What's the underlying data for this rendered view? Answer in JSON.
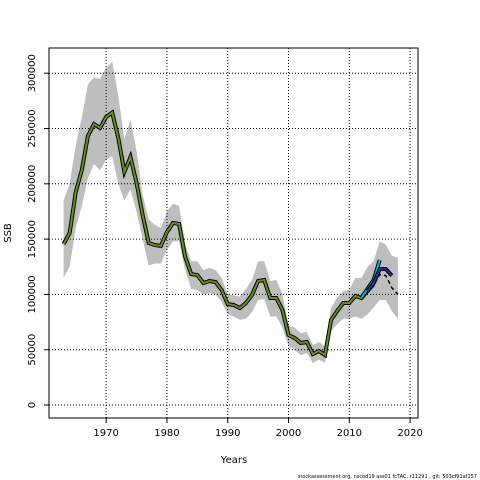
{
  "chart_data": {
    "type": "line",
    "xlabel": "Years",
    "ylabel": "SSB",
    "footer": "stockassessment.org, nscod19 ass01 fcTAC, r11291 , git: 503cf91af157",
    "xlim": [
      1960.6,
      2021.3
    ],
    "xticks": [
      1970,
      1980,
      1990,
      2000,
      2010,
      2020
    ],
    "ylim": [
      -11750,
      322800
    ],
    "yticks": [
      0,
      50000,
      100000,
      150000,
      200000,
      250000,
      300000
    ],
    "grid": true,
    "band_color": "#bebebe",
    "band": {
      "x": [
        1963,
        1964,
        1965,
        1966,
        1967,
        1968,
        1969,
        1970,
        1971,
        1972,
        1973,
        1974,
        1975,
        1976,
        1977,
        1978,
        1979,
        1980,
        1981,
        1982,
        1983,
        1984,
        1985,
        1986,
        1987,
        1988,
        1989,
        1990,
        1991,
        1992,
        1993,
        1994,
        1995,
        1996,
        1997,
        1998,
        1999,
        2000,
        2001,
        2002,
        2003,
        2004,
        2005,
        2006,
        2007,
        2008,
        2009,
        2010,
        2011,
        2012,
        2013,
        2014,
        2015,
        2016,
        2017,
        2018
      ],
      "upper": [
        185000,
        200000,
        235000,
        260000,
        290000,
        296000,
        295000,
        305000,
        310000,
        280000,
        240000,
        258000,
        230000,
        190000,
        168000,
        163000,
        160000,
        175000,
        182000,
        180000,
        145000,
        130000,
        130000,
        122000,
        124000,
        122000,
        115000,
        100000,
        99000,
        98000,
        105000,
        113000,
        130000,
        130000,
        112000,
        113000,
        100000,
        72000,
        70000,
        65000,
        66000,
        54000,
        57000,
        53000,
        88000,
        97000,
        103000,
        104000,
        115000,
        115000,
        125000,
        130000,
        148000,
        145000,
        135000,
        133000
      ],
      "lower": [
        115000,
        125000,
        160000,
        180000,
        205000,
        218000,
        212000,
        222000,
        225000,
        200000,
        185000,
        195000,
        175000,
        150000,
        126000,
        128000,
        128000,
        140000,
        148000,
        148000,
        122000,
        105000,
        104000,
        100000,
        101000,
        100000,
        93000,
        82000,
        80000,
        77000,
        78000,
        84000,
        95000,
        96000,
        80000,
        80000,
        70000,
        53000,
        50000,
        45000,
        47000,
        38000,
        41000,
        38000,
        67000,
        73000,
        78000,
        78000,
        80000,
        78000,
        82000,
        88000,
        95000,
        95000,
        85000,
        78000
      ]
    },
    "series": [
      {
        "color": "#000000",
        "dashed": true,
        "x": [
          2012,
          2013,
          2014,
          2015,
          2016,
          2017,
          2018
        ],
        "values": [
          96000,
          103000,
          108000,
          118000,
          117000,
          106000,
          100000
        ]
      },
      {
        "color": "#6b8e23",
        "x": [
          1963,
          1964,
          1965,
          1966,
          1967,
          1968,
          1969,
          1970,
          1971,
          1972,
          1973,
          1974,
          1975,
          1976,
          1977,
          1978,
          1979,
          1980,
          1981,
          1982,
          1983,
          1984,
          1985,
          1986,
          1987,
          1988,
          1989,
          1990,
          1991,
          1992,
          1993,
          1994,
          1995,
          1996,
          1997,
          1998,
          1999,
          2000,
          2001,
          2002,
          2003,
          2004,
          2005,
          2006,
          2007,
          2008,
          2009,
          2010,
          2011,
          2012,
          2013,
          2014
        ],
        "values": [
          145600,
          155500,
          192600,
          212500,
          243200,
          254000,
          250500,
          260400,
          264400,
          241400,
          210700,
          224200,
          200700,
          171800,
          146500,
          144700,
          143800,
          156400,
          164600,
          163700,
          133800,
          118400,
          117500,
          110300,
          112100,
          111200,
          104000,
          91300,
          90400,
          87700,
          92200,
          99500,
          112100,
          113000,
          96700,
          96700,
          85900,
          63300,
          60600,
          56100,
          57000,
          46100,
          48800,
          45200,
          76900,
          85000,
          92200,
          92200,
          98600,
          96700,
          103100,
          109400
        ]
      },
      {
        "color": "#00bcd4",
        "x": [
          2012,
          2013,
          2014,
          2015
        ],
        "values": [
          97000,
          105000,
          113000,
          131000
        ]
      },
      {
        "color": "#2b2b8f",
        "x": [
          2013,
          2014,
          2015,
          2016,
          2017
        ],
        "values": [
          103000,
          110000,
          123000,
          123000,
          117000
        ]
      }
    ]
  }
}
